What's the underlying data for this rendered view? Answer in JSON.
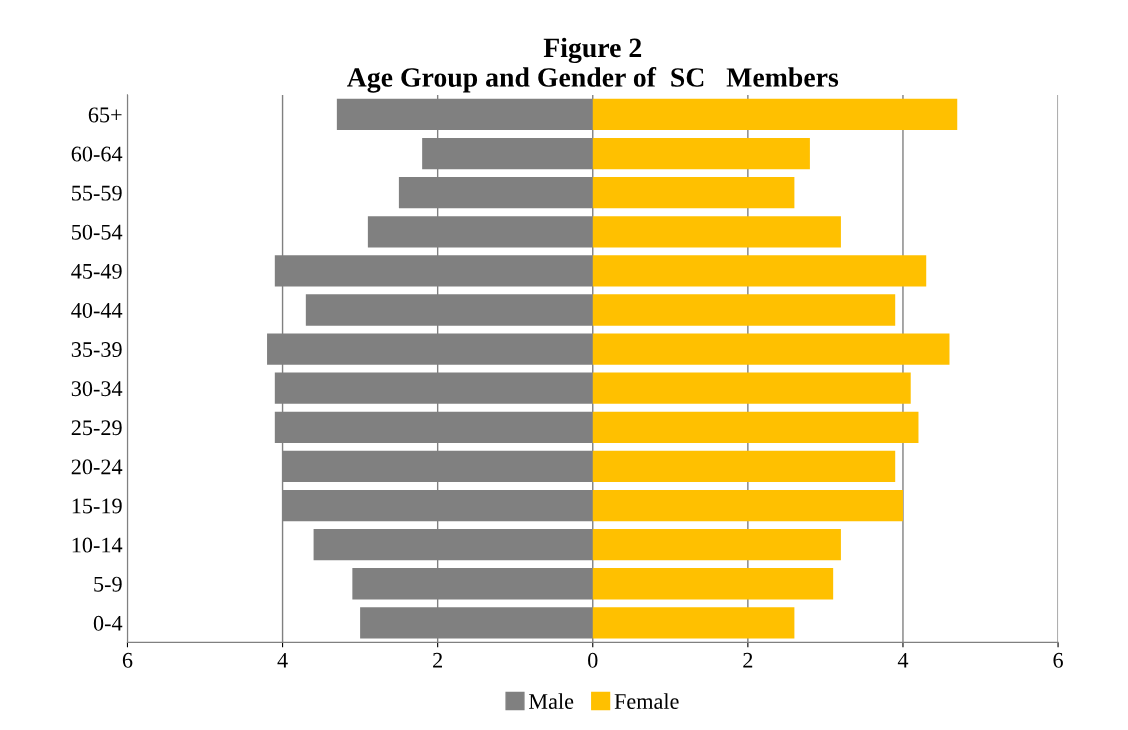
{
  "chart_data": {
    "type": "bar",
    "orientation": "horizontal",
    "title": "Figure 2\nAge Group and Gender of  SC   Members",
    "categories": [
      "65+",
      "60-64",
      "55-59",
      "50-54",
      "45-49",
      "40-44",
      "35-39",
      "30-34",
      "25-29",
      "20-24",
      "15-19",
      "10-14",
      "5-9",
      "0-4"
    ],
    "series": [
      {
        "name": "Male",
        "color": "#808080",
        "values": [
          -3.3,
          -2.2,
          -2.5,
          -2.9,
          -4.1,
          -3.7,
          -4.2,
          -4.1,
          -4.1,
          -4.0,
          -4.0,
          -3.6,
          -3.1,
          -3.0
        ]
      },
      {
        "name": "Female",
        "color": "#ffc000",
        "values": [
          4.7,
          2.8,
          2.6,
          3.2,
          4.3,
          3.9,
          4.6,
          4.1,
          4.2,
          3.9,
          4.0,
          3.2,
          3.1,
          2.6
        ]
      }
    ],
    "xlim": [
      -6,
      6
    ],
    "xticks": [
      {
        "value": -6,
        "label": "6"
      },
      {
        "value": -4,
        "label": "4"
      },
      {
        "value": -2,
        "label": "2"
      },
      0,
      2,
      4,
      6
    ],
    "grid": "x",
    "legend": "bottom",
    "stacked": true
  }
}
